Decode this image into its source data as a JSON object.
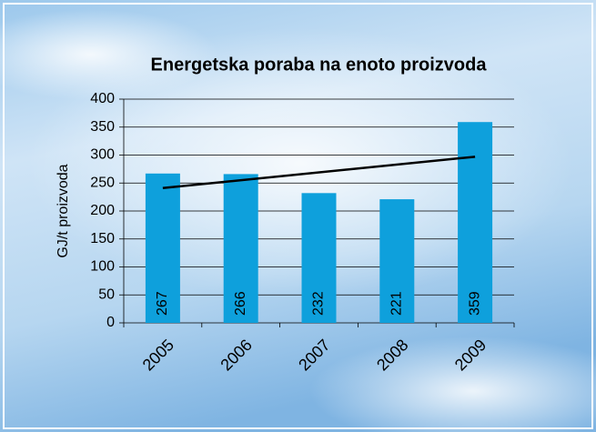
{
  "chart_data": {
    "type": "bar",
    "title": "Energetska poraba na enoto proizvoda",
    "y_label": "GJ/t proizvoda",
    "categories": [
      "2005",
      "2006",
      "2007",
      "2008",
      "2009"
    ],
    "values": [
      267,
      266,
      232,
      221,
      359
    ],
    "color": "#0ea0dc",
    "ylim": [
      0,
      400
    ],
    "yticks": [
      0,
      50,
      100,
      150,
      200,
      250,
      300,
      350,
      400
    ],
    "grid": true,
    "trend": {
      "start": 241,
      "end": 297,
      "color": "#000000"
    }
  }
}
